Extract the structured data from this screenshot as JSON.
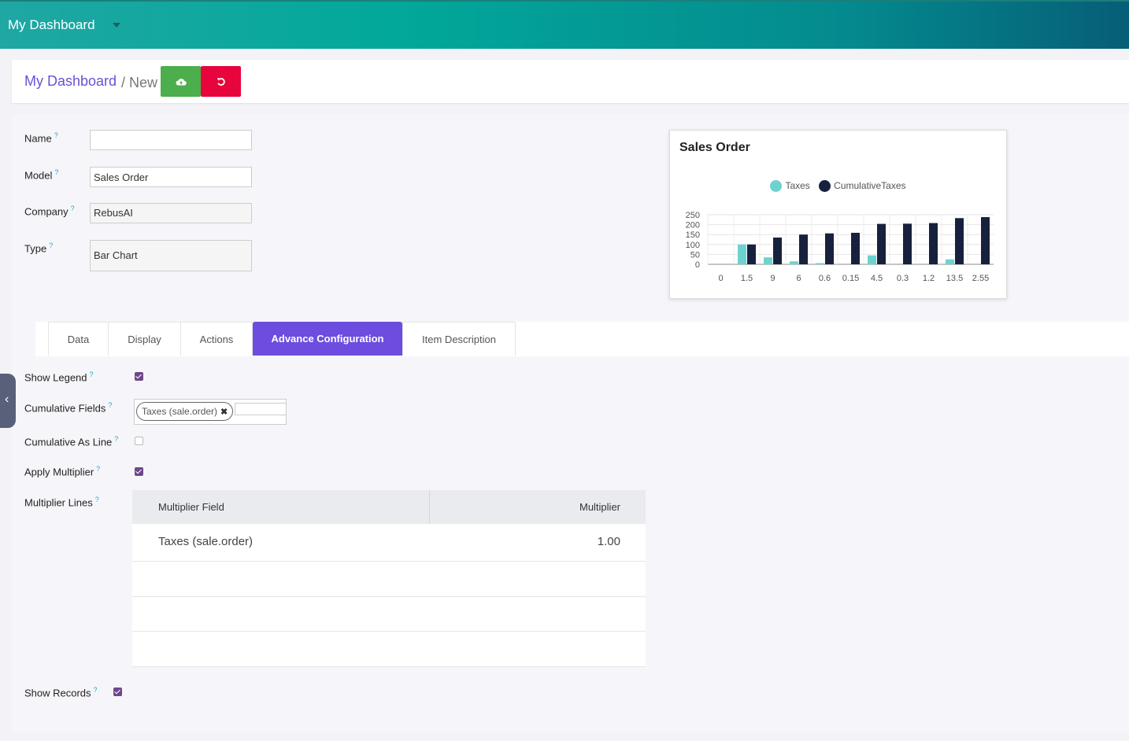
{
  "app": {
    "title": "My Dashboard"
  },
  "breadcrumb": {
    "parent": "My Dashboard",
    "separator": "/ New"
  },
  "form": {
    "name": {
      "label": "Name",
      "help": "?",
      "value": ""
    },
    "model": {
      "label": "Model",
      "help": "?",
      "value": "Sales Order"
    },
    "company": {
      "label": "Company",
      "help": "?",
      "value": "RebusAI"
    },
    "type": {
      "label": "Type",
      "help": "?",
      "value": "Bar Chart"
    }
  },
  "tabs": [
    {
      "label": "Data"
    },
    {
      "label": "Display"
    },
    {
      "label": "Actions"
    },
    {
      "label": "Advance Configuration",
      "active": true
    },
    {
      "label": "Item Description"
    }
  ],
  "advanced": {
    "show_legend": {
      "label": "Show Legend",
      "help": "?",
      "checked": true
    },
    "cumulative_fields": {
      "label": "Cumulative Fields",
      "help": "?",
      "tags": [
        "Taxes (sale.order)"
      ]
    },
    "cumulative_as_line": {
      "label": "Cumulative As Line",
      "help": "?",
      "checked": false
    },
    "apply_multiplier": {
      "label": "Apply Multiplier",
      "help": "?",
      "checked": true
    },
    "multiplier_lines": {
      "label": "Multiplier Lines",
      "help": "?",
      "columns": [
        "Multiplier Field",
        "Multiplier"
      ],
      "rows": [
        {
          "field": "Taxes (sale.order)",
          "multiplier": "1.00"
        }
      ]
    },
    "show_records": {
      "label": "Show Records",
      "help": "?",
      "checked": true
    }
  },
  "colors": {
    "accent": "#6c4ddf",
    "taxes": "#6dd3cf",
    "cumulative": "#17213d",
    "discard": "#e8043c",
    "save": "#4cae4c"
  },
  "icons": {
    "save": "cloud-upload-icon",
    "discard": "undo-icon",
    "side_toggle": "chevron-left-icon"
  },
  "chart_data": {
    "type": "bar",
    "title": "Sales Order",
    "categories": [
      "0",
      "1.5",
      "9",
      "6",
      "0.6",
      "0.15",
      "4.5",
      "0.3",
      "1.2",
      "13.5",
      "2.55"
    ],
    "series": [
      {
        "name": "Taxes",
        "values": [
          0,
          100,
          35,
          15,
          6,
          0,
          45,
          0,
          0,
          25,
          0
        ]
      },
      {
        "name": "CumulativeTaxes",
        "values": [
          0,
          100,
          135,
          150,
          156,
          159,
          204,
          205,
          208,
          233,
          238
        ]
      }
    ],
    "yticks": [
      "250",
      "200",
      "150",
      "100",
      "50",
      "0"
    ],
    "ylim": [
      0,
      250
    ],
    "legend": "top-center",
    "grid": true
  }
}
